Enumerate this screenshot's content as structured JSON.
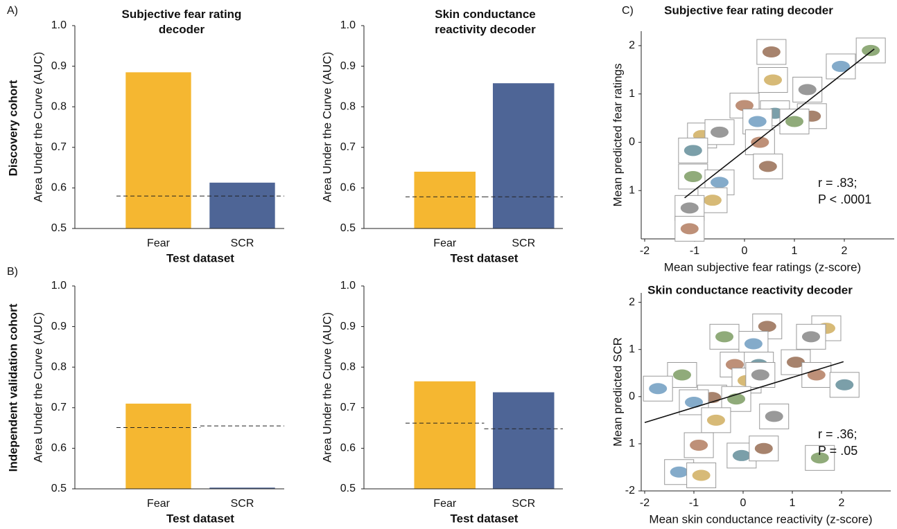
{
  "panel_labels": [
    "A)",
    "B)",
    "C)"
  ],
  "row_labels": [
    "Discovery cohort",
    "Independent validation cohort"
  ],
  "chart_data": [
    {
      "type": "bar",
      "title": "Subjective fear rating decoder",
      "y_label": "Area Under the Curve (AUC)",
      "x_label": "Test dataset",
      "categories": [
        "Fear",
        "SCR"
      ],
      "values": [
        0.885,
        0.613
      ],
      "chance_levels": [
        0.58,
        0.58
      ],
      "colors": [
        "#f5b731",
        "#4e6596"
      ],
      "ylim": [
        0.5,
        1
      ],
      "yticks": [
        0.5,
        0.6,
        0.7,
        0.8,
        0.9,
        {
          "value": 1,
          "label": "1.0"
        }
      ]
    },
    {
      "type": "bar",
      "title": "Skin conductance reactivity decoder",
      "y_label": "Area Under the Curve (AUC)",
      "x_label": "Test dataset",
      "categories": [
        "Fear",
        "SCR"
      ],
      "values": [
        0.64,
        0.858
      ],
      "chance_levels": [
        0.578,
        0.578
      ],
      "colors": [
        "#f5b731",
        "#4e6596"
      ],
      "ylim": [
        0.5,
        1
      ],
      "yticks": [
        0.5,
        0.6,
        0.7,
        0.8,
        0.9,
        {
          "value": 1,
          "label": "1.0"
        }
      ]
    },
    {
      "type": "bar",
      "y_label": "Area Under the Curve (AUC)",
      "x_label": "Test dataset",
      "categories": [
        "Fear",
        "SCR"
      ],
      "values": [
        0.71,
        0.503
      ],
      "chance_levels": [
        0.651,
        0.655
      ],
      "colors": [
        "#f5b731",
        "#4e6596"
      ],
      "ylim": [
        0.5,
        1
      ],
      "yticks": [
        0.5,
        0.6,
        0.7,
        0.8,
        0.9,
        {
          "value": 1,
          "label": "1.0"
        }
      ]
    },
    {
      "type": "bar",
      "y_label": "Area Under the Curve (AUC)",
      "x_label": "Test dataset",
      "categories": [
        "Fear",
        "SCR"
      ],
      "values": [
        0.765,
        0.738
      ],
      "chance_levels": [
        0.662,
        0.648
      ],
      "colors": [
        "#f5b731",
        "#4e6596"
      ],
      "ylim": [
        0.5,
        1
      ],
      "yticks": [
        0.5,
        0.6,
        0.7,
        0.8,
        0.9,
        {
          "value": 1,
          "label": "1.0"
        }
      ]
    },
    {
      "type": "scatter",
      "title": "Subjective fear rating decoder",
      "x_label": "Mean subjective fear ratings (z-score)",
      "y_label": "Mean predicted fear ratings",
      "x": [
        0.54,
        2.53,
        1.93,
        0.57,
        1.26,
        0,
        0.61,
        1.35,
        1.0,
        0.26,
        -0.85,
        -0.5,
        0.31,
        -1.03,
        0.47,
        -1.03,
        -0.5,
        -0.64,
        -1.1,
        -1.1
      ],
      "y": [
        1.87,
        1.9,
        1.57,
        1.29,
        1.09,
        0.76,
        0.6,
        0.54,
        0.43,
        0.43,
        0.14,
        0.21,
        0,
        -0.17,
        -0.5,
        -0.71,
        -0.83,
        -1.2,
        -1.36,
        -1.79
      ],
      "fit": {
        "x": [
          -1.2,
          2.6
        ],
        "y": [
          -1.15,
          1.93
        ]
      },
      "annotations": [
        "r = .83;",
        "P < .0001"
      ],
      "xlim": [
        -2,
        3
      ],
      "ylim": [
        -2,
        2.3
      ],
      "xticks": [
        -2,
        -1,
        0,
        1,
        2
      ],
      "yticks": [
        2,
        1,
        0,
        {
          "value": -1,
          "label": "1"
        }
      ]
    },
    {
      "type": "scatter",
      "title": "Skin conductance reactivity decoder",
      "x_label": "Mean skin conductance reactivity (z-score)",
      "y_label": "Mean predicted SCR",
      "x": [
        0.49,
        -0.38,
        0.21,
        1.69,
        1.38,
        -0.17,
        0.32,
        1.07,
        -1.24,
        -1.73,
        0.07,
        0.35,
        1.49,
        2.06,
        -0.63,
        -0.14,
        -1.0,
        -0.55,
        0.63,
        -0.9,
        -0.03,
        0.42,
        1.56,
        -1.3,
        -0.85
      ],
      "y": [
        1.49,
        1.27,
        1.12,
        1.45,
        1.27,
        0.68,
        0.68,
        0.73,
        0.46,
        0.17,
        0.34,
        0.46,
        0.46,
        0.25,
        -0.02,
        -0.05,
        -0.12,
        -0.5,
        -0.42,
        -1.03,
        -1.25,
        -1.1,
        -1.3,
        -1.6,
        -1.67
      ],
      "fit": {
        "x": [
          -2.0,
          2.04
        ],
        "y": [
          -0.55,
          0.74
        ]
      },
      "annotations": [
        "r = .36;",
        "P = .05"
      ],
      "xlim": [
        -2,
        3
      ],
      "ylim": [
        -2,
        2.2
      ],
      "xticks": [
        -2,
        -1,
        0,
        1,
        2
      ],
      "yticks": [
        2,
        1,
        0,
        {
          "value": -1,
          "label": "1"
        },
        -2
      ]
    }
  ]
}
